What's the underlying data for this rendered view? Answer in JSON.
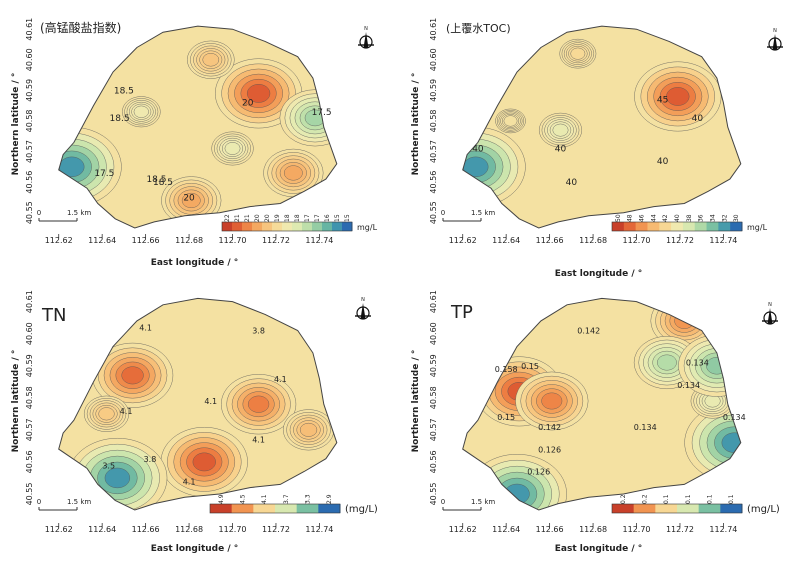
{
  "figure": {
    "xlabel": "East longitude / °",
    "ylabel": "Northern latitude / °",
    "scale_label": "1.5 km",
    "scale_zero": "0",
    "compass_letter": "N",
    "colors": {
      "ramp": [
        "#c8402a",
        "#dd5a32",
        "#ec7a40",
        "#f29a55",
        "#f6b56d",
        "#f8cc86",
        "#f6de9d",
        "#f0e9af",
        "#e2ebb2",
        "#c9e4ac",
        "#a8d6a6",
        "#82c4a2",
        "#5aaea3",
        "#3b8fb0",
        "#2b6bb0"
      ],
      "outline": "#444444",
      "contour": "#555555"
    }
  },
  "chart_data": [
    {
      "type": "heatmap",
      "title": "(高锰酸盐指数)",
      "unit": "mg/L",
      "x_ticks": [
        "112.62",
        "112.64",
        "112.66",
        "112.68",
        "112.70",
        "112.72",
        "112.74"
      ],
      "y_ticks": [
        "40.55",
        "40.56",
        "40.57",
        "40.58",
        "40.59",
        "40.60",
        "40.61"
      ],
      "legend_values": [
        "22",
        "21",
        "21",
        "20",
        "20",
        "19",
        "18",
        "18",
        "17",
        "17",
        "16",
        "15",
        "15"
      ],
      "contour_labels": [
        "18.5",
        "18.5",
        "20",
        "18.5",
        "17.5",
        "17.5",
        "18.5",
        "20"
      ],
      "value_range": [
        15,
        22
      ],
      "hotspots": [
        {
          "x": 112.712,
          "y": 40.589,
          "value": 22
        },
        {
          "x": 112.728,
          "y": 40.563,
          "value": 20.5
        },
        {
          "x": 112.681,
          "y": 40.554,
          "value": 20.5
        },
        {
          "x": 112.69,
          "y": 40.6,
          "value": 19.8
        },
        {
          "x": 112.626,
          "y": 40.565,
          "value": 15
        },
        {
          "x": 112.738,
          "y": 40.581,
          "value": 16.6
        },
        {
          "x": 112.658,
          "y": 40.583,
          "value": 18.4
        },
        {
          "x": 112.7,
          "y": 40.571,
          "value": 18.2
        }
      ]
    },
    {
      "type": "heatmap",
      "title": "(上覆水TOC)",
      "unit": "mg/L",
      "x_ticks": [
        "112.62",
        "112.64",
        "112.66",
        "112.68",
        "112.70",
        "112.72",
        "112.74"
      ],
      "y_ticks": [
        "40.55",
        "40.56",
        "40.57",
        "40.58",
        "40.59",
        "40.60",
        "40.61"
      ],
      "legend_values": [
        "50",
        "48",
        "46",
        "44",
        "42",
        "40",
        "38",
        "36",
        "34",
        "32",
        "30"
      ],
      "contour_labels": [
        "40",
        "45",
        "40",
        "40",
        "40",
        "40"
      ],
      "value_range": [
        30,
        50
      ],
      "hotspots": [
        {
          "x": 112.719,
          "y": 40.588,
          "value": 50
        },
        {
          "x": 112.626,
          "y": 40.565,
          "value": 30
        },
        {
          "x": 112.673,
          "y": 40.602,
          "value": 42
        },
        {
          "x": 112.665,
          "y": 40.577,
          "value": 39
        },
        {
          "x": 112.642,
          "y": 40.58,
          "value": 41
        }
      ]
    },
    {
      "type": "heatmap",
      "title": "TN",
      "unit": "(mg/L)",
      "x_ticks": [
        "112.62",
        "112.64",
        "112.66",
        "112.68",
        "112.70",
        "112.72",
        "112.74"
      ],
      "y_ticks": [
        "40.55",
        "40.56",
        "40.57",
        "40.58",
        "40.59",
        "40.60",
        "40.61"
      ],
      "legend_values": [
        "4.9",
        "4.5",
        "4.1",
        "3.7",
        "3.3",
        "2.9"
      ],
      "contour_labels": [
        "4.1",
        "3.8",
        "4.1",
        "4.1",
        "4.1",
        "4.1",
        "4.1",
        "3.8",
        "3.5"
      ],
      "value_range": [
        2.9,
        5.0
      ],
      "hotspots": [
        {
          "x": 112.654,
          "y": 40.587,
          "value": 4.9
        },
        {
          "x": 112.687,
          "y": 40.56,
          "value": 5.0
        },
        {
          "x": 112.712,
          "y": 40.578,
          "value": 4.8
        },
        {
          "x": 112.647,
          "y": 40.555,
          "value": 2.9
        },
        {
          "x": 112.642,
          "y": 40.575,
          "value": 4.3
        },
        {
          "x": 112.735,
          "y": 40.57,
          "value": 4.4
        }
      ]
    },
    {
      "type": "heatmap",
      "title": "TP",
      "unit": "(mg/L)",
      "x_ticks": [
        "112.62",
        "112.64",
        "112.66",
        "112.68",
        "112.70",
        "112.72",
        "112.74"
      ],
      "y_ticks": [
        "40.55",
        "40.56",
        "40.57",
        "40.58",
        "40.59",
        "40.60",
        "40.61"
      ],
      "legend_values": [
        "0.2",
        "0.2",
        "0.1",
        "0.1",
        "0.1",
        "0.1"
      ],
      "contour_labels": [
        "0.142",
        "0.134",
        "0.158",
        "0.15",
        "0.134",
        "0.15",
        "0.142",
        "0.134",
        "0.126",
        "0.126",
        "0.134"
      ],
      "value_range": [
        0.12,
        0.165
      ],
      "hotspots": [
        {
          "x": 112.646,
          "y": 40.582,
          "value": 0.165
        },
        {
          "x": 112.661,
          "y": 40.579,
          "value": 0.16
        },
        {
          "x": 112.722,
          "y": 40.604,
          "value": 0.158
        },
        {
          "x": 112.645,
          "y": 40.55,
          "value": 0.12
        },
        {
          "x": 112.745,
          "y": 40.566,
          "value": 0.12
        },
        {
          "x": 112.714,
          "y": 40.591,
          "value": 0.132
        },
        {
          "x": 112.735,
          "y": 40.579,
          "value": 0.14
        },
        {
          "x": 112.737,
          "y": 40.59,
          "value": 0.128
        }
      ]
    }
  ]
}
